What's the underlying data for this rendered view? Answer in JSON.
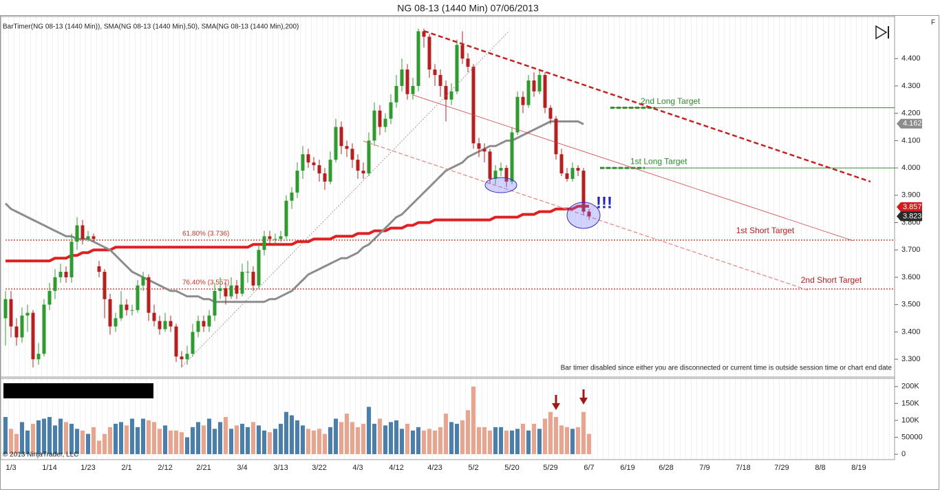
{
  "chart_data": [
    {
      "type": "candlestick",
      "title": "NG 08-13 (1440 Min)  07/06/2013",
      "subtitle": "BarTimer(NG 08-13 (1440 Min)), SMA(NG 08-13 (1440 Min),50), SMA(NG 08-13 (1440 Min),200)",
      "categories": [
        null,
        "1/3",
        null,
        null,
        null,
        null,
        null,
        null,
        "1/14",
        null,
        null,
        null,
        null,
        null,
        null,
        "1/23",
        null,
        null,
        null,
        null,
        null,
        null,
        "2/1",
        null,
        null,
        null,
        null,
        null,
        null,
        "2/12",
        null,
        null,
        null,
        null,
        null,
        null,
        "2/21",
        null,
        null,
        null,
        null,
        null,
        null,
        "3/4",
        null,
        null,
        null,
        null,
        null,
        null,
        "3/13",
        null,
        null,
        null,
        null,
        null,
        null,
        "3/22",
        null,
        null,
        null,
        null,
        null,
        null,
        "4/3",
        null,
        null,
        null,
        null,
        null,
        null,
        "4/12",
        null,
        null,
        null,
        null,
        null,
        null,
        "4/23",
        null,
        null,
        null,
        null,
        null,
        null,
        "5/2",
        null,
        null,
        null,
        null,
        null,
        null,
        "5/20",
        null,
        null,
        null,
        null,
        null,
        null,
        "5/29",
        null,
        null,
        null,
        null,
        null,
        null,
        "6/7"
      ],
      "future_categories": [
        "6/19",
        "6/28",
        "7/9",
        "7/18",
        "7/29",
        "8/8",
        "8/19"
      ],
      "up_color": "#2f9a2f",
      "down_color": "#b42020",
      "ohlc": [
        [
          3.45,
          3.55,
          3.35,
          3.52
        ],
        [
          3.52,
          3.55,
          3.38,
          3.42
        ],
        [
          3.42,
          3.45,
          3.35,
          3.38
        ],
        [
          3.38,
          3.49,
          3.36,
          3.46
        ],
        [
          3.46,
          3.5,
          3.4,
          3.47
        ],
        [
          3.47,
          3.48,
          3.27,
          3.3
        ],
        [
          3.3,
          3.36,
          3.28,
          3.32
        ],
        [
          3.32,
          3.52,
          3.31,
          3.5
        ],
        [
          3.5,
          3.58,
          3.48,
          3.55
        ],
        [
          3.55,
          3.63,
          3.52,
          3.6
        ],
        [
          3.6,
          3.65,
          3.58,
          3.62
        ],
        [
          3.62,
          3.64,
          3.58,
          3.6
        ],
        [
          3.6,
          3.76,
          3.58,
          3.73
        ],
        [
          3.73,
          3.82,
          3.7,
          3.79
        ],
        [
          3.79,
          3.81,
          3.72,
          3.74
        ],
        [
          3.74,
          3.77,
          3.73,
          3.75
        ],
        [
          3.75,
          3.76,
          3.73,
          3.74
        ],
        [
          3.64,
          3.66,
          3.6,
          3.62
        ],
        [
          3.62,
          3.63,
          3.45,
          3.52
        ],
        [
          3.52,
          3.54,
          3.39,
          3.42
        ],
        [
          3.42,
          3.47,
          3.4,
          3.45
        ],
        [
          3.45,
          3.55,
          3.44,
          3.5
        ],
        [
          3.5,
          3.52,
          3.46,
          3.48
        ],
        [
          3.48,
          3.5,
          3.46,
          3.48
        ],
        [
          3.48,
          3.59,
          3.47,
          3.57
        ],
        [
          3.57,
          3.62,
          3.55,
          3.6
        ],
        [
          3.6,
          3.61,
          3.44,
          3.47
        ],
        [
          3.47,
          3.5,
          3.42,
          3.44
        ],
        [
          3.44,
          3.46,
          3.39,
          3.41
        ],
        [
          3.41,
          3.47,
          3.4,
          3.44
        ],
        [
          3.44,
          3.46,
          3.4,
          3.42
        ],
        [
          3.42,
          3.43,
          3.29,
          3.31
        ],
        [
          3.31,
          3.33,
          3.27,
          3.3
        ],
        [
          3.3,
          3.35,
          3.28,
          3.32
        ],
        [
          3.32,
          3.43,
          3.31,
          3.4
        ],
        [
          3.4,
          3.46,
          3.38,
          3.44
        ],
        [
          3.44,
          3.46,
          3.4,
          3.42
        ],
        [
          3.42,
          3.48,
          3.4,
          3.46
        ],
        [
          3.46,
          3.58,
          3.44,
          3.55
        ],
        [
          3.55,
          3.6,
          3.52,
          3.56
        ],
        [
          3.56,
          3.58,
          3.5,
          3.53
        ],
        [
          3.53,
          3.6,
          3.52,
          3.57
        ],
        [
          3.57,
          3.59,
          3.52,
          3.54
        ],
        [
          3.54,
          3.65,
          3.53,
          3.62
        ],
        [
          3.62,
          3.66,
          3.58,
          3.62
        ],
        [
          3.62,
          3.64,
          3.55,
          3.57
        ],
        [
          3.57,
          3.72,
          3.56,
          3.7
        ],
        [
          3.7,
          3.77,
          3.68,
          3.75
        ],
        [
          3.75,
          3.77,
          3.72,
          3.74
        ],
        [
          3.74,
          3.76,
          3.72,
          3.74
        ],
        [
          3.74,
          3.77,
          3.73,
          3.75
        ],
        [
          3.75,
          3.9,
          3.74,
          3.88
        ],
        [
          3.88,
          3.93,
          3.85,
          3.91
        ],
        [
          3.91,
          4.02,
          3.89,
          3.99
        ],
        [
          3.99,
          4.08,
          3.96,
          4.05
        ],
        [
          4.05,
          4.07,
          4.0,
          4.02
        ],
        [
          4.02,
          4.04,
          3.99,
          4.01
        ],
        [
          4.01,
          4.03,
          3.95,
          3.98
        ],
        [
          3.98,
          4.0,
          3.92,
          3.95
        ],
        [
          3.95,
          4.06,
          3.94,
          4.03
        ],
        [
          4.03,
          4.18,
          4.02,
          4.15
        ],
        [
          4.15,
          4.17,
          4.05,
          4.08
        ],
        [
          4.08,
          4.1,
          4.04,
          4.07
        ],
        [
          4.07,
          4.09,
          4.0,
          4.03
        ],
        [
          4.03,
          4.05,
          3.96,
          3.99
        ],
        [
          3.99,
          4.02,
          3.96,
          3.98
        ],
        [
          3.98,
          4.13,
          3.97,
          4.1
        ],
        [
          4.1,
          4.24,
          4.08,
          4.21
        ],
        [
          4.21,
          4.23,
          4.12,
          4.15
        ],
        [
          4.15,
          4.2,
          4.13,
          4.18
        ],
        [
          4.18,
          4.27,
          4.16,
          4.24
        ],
        [
          4.24,
          4.34,
          4.22,
          4.3
        ],
        [
          4.3,
          4.4,
          4.28,
          4.36
        ],
        [
          4.36,
          4.38,
          4.25,
          4.27
        ],
        [
          4.27,
          4.33,
          4.25,
          4.3
        ],
        [
          4.3,
          4.51,
          4.28,
          4.5
        ],
        [
          4.5,
          4.51,
          4.44,
          4.48
        ],
        [
          4.48,
          4.49,
          4.33,
          4.36
        ],
        [
          4.36,
          4.38,
          4.3,
          4.34
        ],
        [
          4.34,
          4.36,
          4.26,
          4.3
        ],
        [
          4.3,
          4.32,
          4.17,
          4.25
        ],
        [
          4.25,
          4.31,
          4.23,
          4.28
        ],
        [
          4.28,
          4.47,
          4.27,
          4.45
        ],
        [
          4.45,
          4.5,
          4.38,
          4.4
        ],
        [
          4.4,
          4.42,
          4.35,
          4.37
        ],
        [
          4.37,
          4.38,
          4.07,
          4.09
        ],
        [
          4.09,
          4.11,
          4.04,
          4.07
        ],
        [
          4.07,
          4.09,
          4.02,
          4.06
        ],
        [
          4.06,
          4.07,
          3.94,
          3.96
        ],
        [
          3.96,
          4.01,
          3.94,
          3.99
        ],
        [
          3.99,
          4.02,
          3.97,
          4.0
        ],
        [
          4.0,
          4.01,
          3.93,
          3.95
        ],
        [
          3.95,
          4.15,
          3.94,
          4.13
        ],
        [
          4.13,
          4.28,
          4.12,
          4.26
        ],
        [
          4.26,
          4.28,
          4.2,
          4.23
        ],
        [
          4.23,
          4.34,
          4.22,
          4.32
        ],
        [
          4.32,
          4.35,
          4.26,
          4.28
        ],
        [
          4.28,
          4.36,
          4.27,
          4.34
        ],
        [
          4.34,
          4.35,
          4.2,
          4.22
        ],
        [
          4.22,
          4.23,
          4.16,
          4.18
        ],
        [
          4.18,
          4.19,
          4.03,
          4.05
        ],
        [
          4.05,
          4.07,
          3.97,
          3.98
        ],
        [
          3.98,
          4.0,
          3.95,
          3.96
        ],
        [
          3.96,
          4.02,
          3.95,
          4.0
        ],
        [
          4.0,
          4.01,
          3.97,
          3.99
        ],
        [
          3.99,
          4.0,
          3.83,
          3.84
        ],
        [
          3.84,
          3.85,
          3.81,
          3.823
        ]
      ],
      "series": [
        {
          "color": "#e02020",
          "width": 4,
          "values": [
            3.66,
            3.66,
            3.66,
            3.66,
            3.66,
            3.66,
            3.66,
            3.66,
            3.66,
            3.67,
            3.67,
            3.67,
            3.68,
            3.68,
            3.69,
            3.69,
            3.7,
            3.7,
            3.7,
            3.7,
            3.71,
            3.71,
            3.71,
            3.71,
            3.71,
            3.71,
            3.71,
            3.71,
            3.71,
            3.71,
            3.71,
            3.71,
            3.71,
            3.71,
            3.71,
            3.71,
            3.71,
            3.71,
            3.71,
            3.71,
            3.71,
            3.71,
            3.71,
            3.71,
            3.71,
            3.72,
            3.72,
            3.72,
            3.72,
            3.72,
            3.72,
            3.72,
            3.72,
            3.73,
            3.73,
            3.73,
            3.74,
            3.74,
            3.74,
            3.74,
            3.75,
            3.75,
            3.75,
            3.75,
            3.76,
            3.76,
            3.76,
            3.77,
            3.77,
            3.77,
            3.78,
            3.78,
            3.78,
            3.79,
            3.79,
            3.8,
            3.8,
            3.8,
            3.81,
            3.81,
            3.81,
            3.81,
            3.81,
            3.81,
            3.81,
            3.81,
            3.81,
            3.81,
            3.81,
            3.82,
            3.82,
            3.82,
            3.82,
            3.82,
            3.83,
            3.83,
            3.83,
            3.84,
            3.84,
            3.84,
            3.85,
            3.85,
            3.85,
            3.85,
            3.86,
            3.86,
            3.86
          ]
        },
        {
          "color": "#8c8c8c",
          "width": 3,
          "values": [
            3.87,
            3.85,
            3.84,
            3.83,
            3.82,
            3.81,
            3.8,
            3.79,
            3.78,
            3.77,
            3.76,
            3.75,
            3.75,
            3.74,
            3.74,
            3.74,
            3.73,
            3.72,
            3.71,
            3.7,
            3.68,
            3.66,
            3.64,
            3.62,
            3.61,
            3.6,
            3.59,
            3.58,
            3.57,
            3.56,
            3.55,
            3.55,
            3.54,
            3.53,
            3.53,
            3.53,
            3.52,
            3.52,
            3.51,
            3.51,
            3.51,
            3.51,
            3.51,
            3.51,
            3.51,
            3.51,
            3.51,
            3.51,
            3.52,
            3.52,
            3.53,
            3.54,
            3.55,
            3.57,
            3.59,
            3.61,
            3.62,
            3.63,
            3.64,
            3.65,
            3.66,
            3.67,
            3.67,
            3.68,
            3.69,
            3.71,
            3.72,
            3.74,
            3.76,
            3.78,
            3.8,
            3.82,
            3.83,
            3.85,
            3.87,
            3.89,
            3.91,
            3.93,
            3.95,
            3.97,
            3.99,
            4.0,
            4.01,
            4.02,
            4.04,
            4.05,
            4.06,
            4.07,
            4.08,
            4.08,
            4.09,
            4.1,
            4.1,
            4.11,
            4.12,
            4.13,
            4.14,
            4.15,
            4.16,
            4.17,
            4.17,
            4.17,
            4.17,
            4.17,
            4.17,
            4.16,
            null
          ]
        }
      ],
      "ylim": [
        3.235,
        4.559
      ],
      "yticks": [
        {
          "value": 3.3,
          "label": "3.300"
        },
        {
          "value": 3.4,
          "label": "3.400"
        },
        {
          "value": 3.5,
          "label": "3.500"
        },
        {
          "value": 3.6,
          "label": "3.600"
        },
        {
          "value": 3.7,
          "label": "3.700"
        },
        {
          "value": 3.8,
          "label": "3.800"
        },
        {
          "value": 3.9,
          "label": "3.900"
        },
        {
          "value": 4.0,
          "label": "4.000"
        },
        {
          "value": 4.1,
          "label": "4.100"
        },
        {
          "value": 4.2,
          "label": "4.200"
        },
        {
          "value": 4.3,
          "label": "4.300"
        },
        {
          "value": 4.4,
          "label": "4.400"
        }
      ],
      "levels": [
        {
          "label": "2nd Long Target",
          "value": 4.22,
          "color": "#2e8b2e"
        },
        {
          "label": "1st Long Target",
          "value": 4.0,
          "color": "#2e8b2e"
        },
        {
          "label": "61.80% (3.736)",
          "value": 3.736,
          "color": "#c0392b"
        },
        {
          "label": "76.40% (3.557)",
          "value": 3.557,
          "color": "#c0392b"
        }
      ],
      "last_values": [
        {
          "value": 4.162,
          "color": "#8c8c8c"
        },
        {
          "value": 3.857,
          "color": "#d01c1c"
        },
        {
          "value": 3.823,
          "color": "#2a2a2a"
        }
      ],
      "annotations": [
        "1st Short Target",
        "2nd Short Target",
        "!!!",
        "Bar timer disabled since either you are disconnected or current time is outside session time or chart end date",
        "© 2013 NinjaTrader, LLC",
        "F"
      ]
    },
    {
      "type": "bar",
      "values": [
        110000,
        75000,
        60000,
        95000,
        70000,
        90000,
        100000,
        105000,
        110000,
        85000,
        105000,
        95000,
        90000,
        75000,
        70000,
        60000,
        80000,
        40000,
        60000,
        80000,
        90000,
        95000,
        85000,
        105000,
        80000,
        105000,
        100000,
        95000,
        75000,
        85000,
        70000,
        70000,
        65000,
        50000,
        80000,
        95000,
        85000,
        105000,
        75000,
        95000,
        110000,
        75000,
        85000,
        90000,
        80000,
        95000,
        85000,
        70000,
        65000,
        75000,
        90000,
        125000,
        115000,
        100000,
        85000,
        75000,
        70000,
        75000,
        60000,
        80000,
        105000,
        95000,
        120000,
        95000,
        80000,
        90000,
        140000,
        90000,
        105000,
        85000,
        95000,
        100000,
        75000,
        90000,
        70000,
        80000,
        70000,
        75000,
        70000,
        80000,
        120000,
        95000,
        90000,
        100000,
        130000,
        200000,
        80000,
        80000,
        70000,
        80000,
        80000,
        70000,
        70000,
        75000,
        90000,
        70000,
        90000,
        75000,
        105000,
        125000,
        110000,
        85000,
        80000,
        75000,
        80000,
        125000,
        60000
      ],
      "up_color": "#4a7fab",
      "down_color": "#e8a48c",
      "ylim": [
        -16000,
        222000
      ],
      "yticks": [
        0,
        50000,
        {
          "value": 100000,
          "label": "100K"
        },
        {
          "value": 150000,
          "label": "150K"
        },
        {
          "value": 200000,
          "label": "200K"
        }
      ]
    }
  ]
}
